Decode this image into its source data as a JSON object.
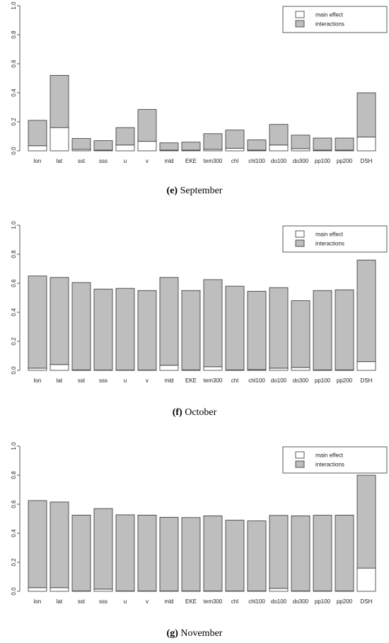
{
  "chart_data": [
    {
      "type": "bar",
      "stacked": true,
      "caption_letter": "(e)",
      "caption_text": "September",
      "categories": [
        "lon",
        "lat",
        "sst",
        "sss",
        "u",
        "v",
        "mld",
        "EKE",
        "tem300",
        "chl",
        "chl100",
        "do100",
        "do300",
        "pp100",
        "pp200",
        "DSH"
      ],
      "series": [
        {
          "name": "main effect",
          "color": "#ffffff",
          "values": [
            0.035,
            0.16,
            0.01,
            0.005,
            0.04,
            0.065,
            0.005,
            0.005,
            0.01,
            0.018,
            0.005,
            0.04,
            0.015,
            0.005,
            0.005,
            0.095
          ]
        },
        {
          "name": "interactions",
          "color": "#bebebe",
          "values": [
            0.175,
            0.36,
            0.075,
            0.065,
            0.12,
            0.22,
            0.05,
            0.055,
            0.108,
            0.125,
            0.07,
            0.142,
            0.093,
            0.083,
            0.083,
            0.305
          ]
        }
      ],
      "ylim": [
        0,
        1
      ],
      "yticks": [
        "0.0",
        "0.2",
        "0.4",
        "0.6",
        "0.8",
        "1.0"
      ],
      "legend_position": "top-right"
    },
    {
      "type": "bar",
      "stacked": true,
      "caption_letter": "(f)",
      "caption_text": "October",
      "categories": [
        "lon",
        "lat",
        "sst",
        "sss",
        "u",
        "v",
        "mld",
        "EKE",
        "tem300",
        "chl",
        "chl100",
        "do100",
        "do300",
        "pp100",
        "pp200",
        "DSH"
      ],
      "series": [
        {
          "name": "main effect",
          "color": "#ffffff",
          "values": [
            0.015,
            0.04,
            0.003,
            0.002,
            0.002,
            0.002,
            0.035,
            0.003,
            0.025,
            0.003,
            0.005,
            0.015,
            0.02,
            0.003,
            0.003,
            0.06
          ]
        },
        {
          "name": "interactions",
          "color": "#bebebe",
          "values": [
            0.635,
            0.6,
            0.602,
            0.558,
            0.563,
            0.548,
            0.605,
            0.547,
            0.6,
            0.577,
            0.54,
            0.555,
            0.46,
            0.547,
            0.552,
            0.7
          ]
        }
      ],
      "ylim": [
        0,
        1
      ],
      "yticks": [
        "0.0",
        "0.2",
        "0.4",
        "0.6",
        "0.8",
        "1.0"
      ],
      "legend_position": "top-right"
    },
    {
      "type": "bar",
      "stacked": true,
      "caption_letter": "(g)",
      "caption_text": "November",
      "categories": [
        "lon",
        "lat",
        "sst",
        "sss",
        "u",
        "v",
        "mld",
        "EKE",
        "tem300",
        "chl",
        "chl100",
        "do100",
        "do300",
        "pp100",
        "pp200",
        "DSH"
      ],
      "series": [
        {
          "name": "main effect",
          "color": "#ffffff",
          "values": [
            0.025,
            0.025,
            0.002,
            0.015,
            0.002,
            0.002,
            0.002,
            0.002,
            0.002,
            0.002,
            0.002,
            0.02,
            0.002,
            0.002,
            0.002,
            0.16
          ]
        },
        {
          "name": "interactions",
          "color": "#bebebe",
          "values": [
            0.6,
            0.59,
            0.523,
            0.555,
            0.525,
            0.523,
            0.508,
            0.506,
            0.518,
            0.488,
            0.483,
            0.503,
            0.518,
            0.522,
            0.523,
            0.64
          ]
        }
      ],
      "ylim": [
        0,
        1
      ],
      "yticks": [
        "0.0",
        "0.2",
        "0.4",
        "0.6",
        "0.8",
        "1.0"
      ],
      "legend_position": "top-right"
    }
  ]
}
